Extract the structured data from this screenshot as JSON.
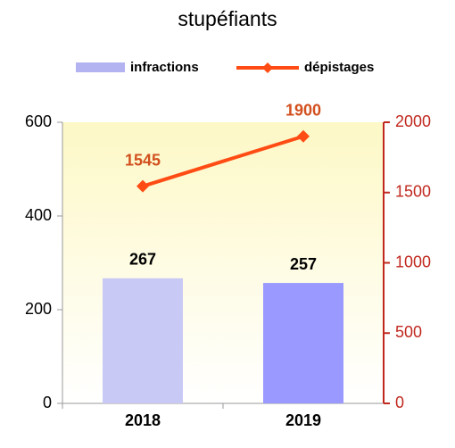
{
  "chart_data": {
    "type": "bar_line",
    "title": "stupéfiants",
    "categories": [
      "2018",
      "2019"
    ],
    "series": [
      {
        "name": "infractions",
        "color": "#b3b3f2",
        "colors": [
          "#c9c9f6",
          "#9999ff"
        ],
        "values": [
          267,
          257
        ]
      },
      {
        "name": "dépistages",
        "color": "#ff4c14",
        "axis": "y2",
        "values": [
          1545,
          1900
        ]
      }
    ],
    "ylim": [
      0,
      600
    ],
    "yticks": [
      0,
      200,
      400,
      600
    ],
    "y2lim": [
      0,
      2000
    ],
    "y2ticks": [
      0,
      500,
      1000,
      1500,
      2000
    ],
    "y2color": "#c0281e",
    "legend": "top"
  }
}
